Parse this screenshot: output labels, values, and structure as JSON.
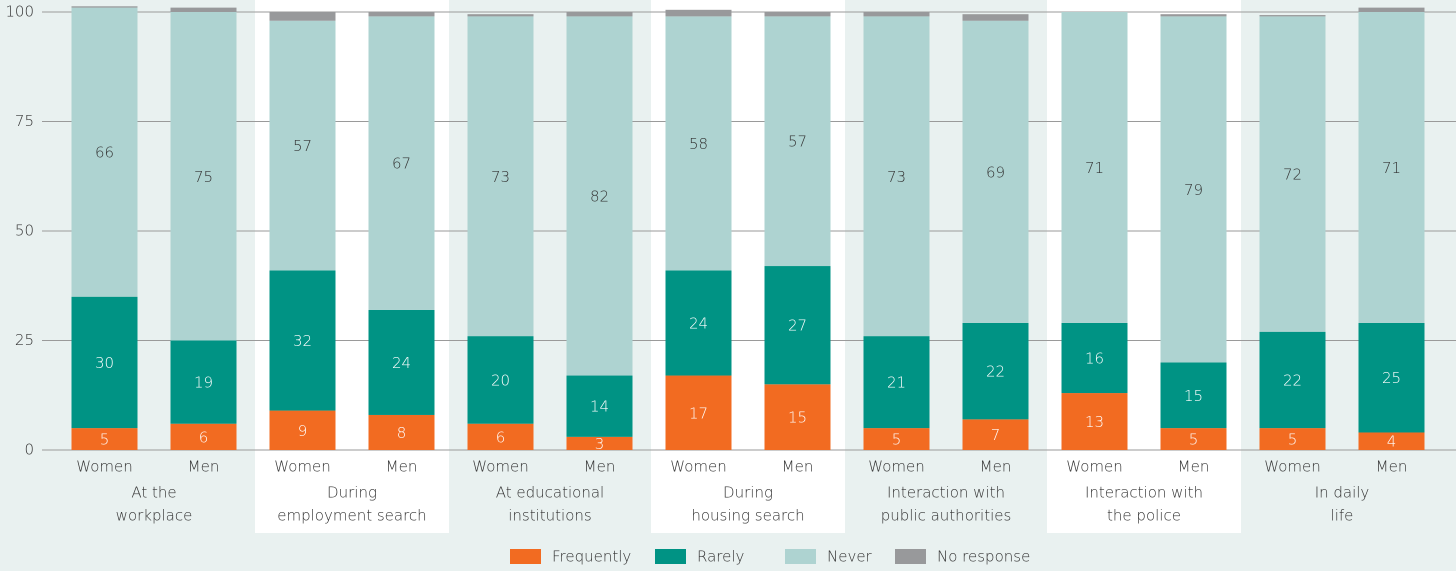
{
  "chart_data": {
    "type": "bar",
    "stacked": true,
    "categories": [
      "Women",
      "Men",
      "Women",
      "Men",
      "Women",
      "Men",
      "Women",
      "Men",
      "Women",
      "Men",
      "Women",
      "Men",
      "Women",
      "Men"
    ],
    "groups": [
      [
        "At the",
        "workplace"
      ],
      [
        "During",
        "employment search"
      ],
      [
        "At educational",
        "institutions"
      ],
      [
        "During",
        "housing search"
      ],
      [
        "Interaction with",
        "public authorities"
      ],
      [
        "Interaction with",
        "the police"
      ],
      [
        "In daily",
        "life"
      ]
    ],
    "series": [
      {
        "name": "Frequently",
        "color": "#f26b21",
        "values": [
          5,
          6,
          9,
          8,
          6,
          3,
          17,
          15,
          5,
          7,
          13,
          5,
          5,
          4
        ]
      },
      {
        "name": "Rarely",
        "color": "#009384",
        "values": [
          30,
          19,
          32,
          24,
          20,
          14,
          24,
          27,
          21,
          22,
          16,
          15,
          22,
          25
        ]
      },
      {
        "name": "Never",
        "color": "#aed3d1",
        "values": [
          66,
          75,
          57,
          67,
          73,
          82,
          58,
          57,
          73,
          69,
          71,
          79,
          72,
          71
        ]
      },
      {
        "name": "No response",
        "color": "#98999b",
        "values": [
          0.3,
          1,
          2,
          1,
          0.5,
          1,
          1.5,
          1,
          1,
          1.5,
          0,
          0.5,
          0.3,
          1
        ]
      }
    ],
    "labeled_series": [
      0,
      1,
      2
    ],
    "ylim": [
      0,
      100
    ],
    "yticks": [
      0,
      25,
      50,
      75,
      100
    ],
    "grid": true,
    "legend": "bottom"
  }
}
